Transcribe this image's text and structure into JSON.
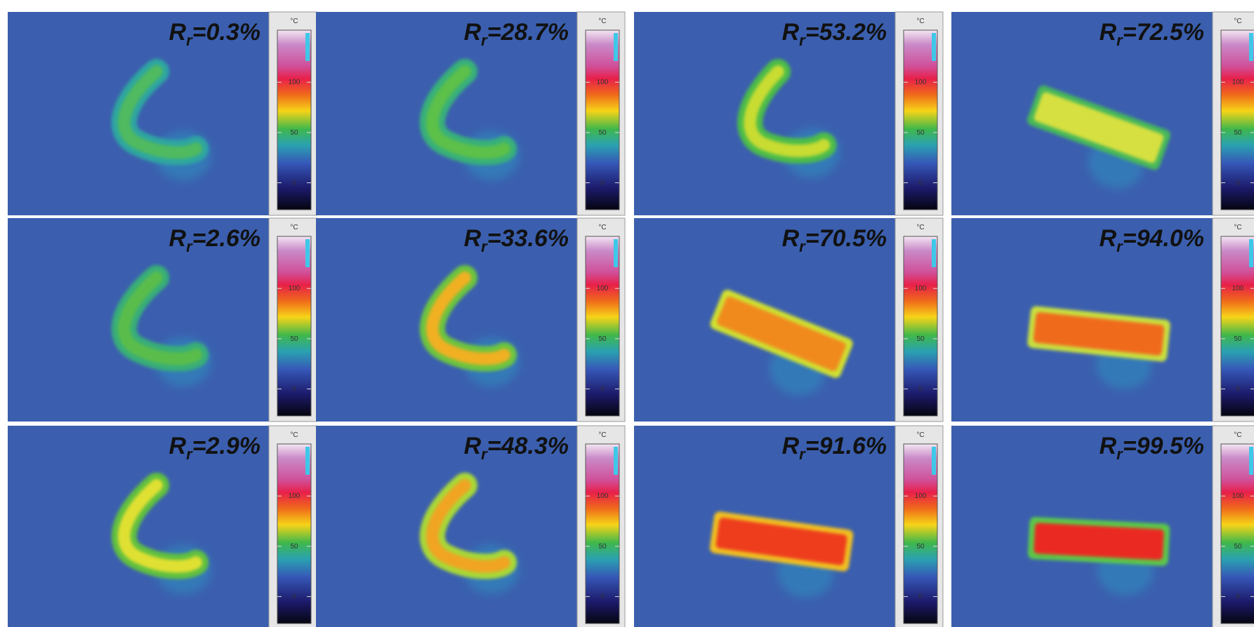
{
  "label_symbol": "R",
  "label_subscript": "r",
  "colorbar": {
    "unit": "°C",
    "ticks": [
      100,
      50,
      0
    ]
  },
  "rows": [
    [
      "=0.3%",
      "=28.7%",
      "=53.2%",
      "=72.5%"
    ],
    [
      "=2.6%",
      "=33.6%",
      "=70.5%",
      "=94.0%"
    ],
    [
      "=2.9%",
      "=48.3%",
      "=91.6%",
      "=99.5%"
    ]
  ]
}
